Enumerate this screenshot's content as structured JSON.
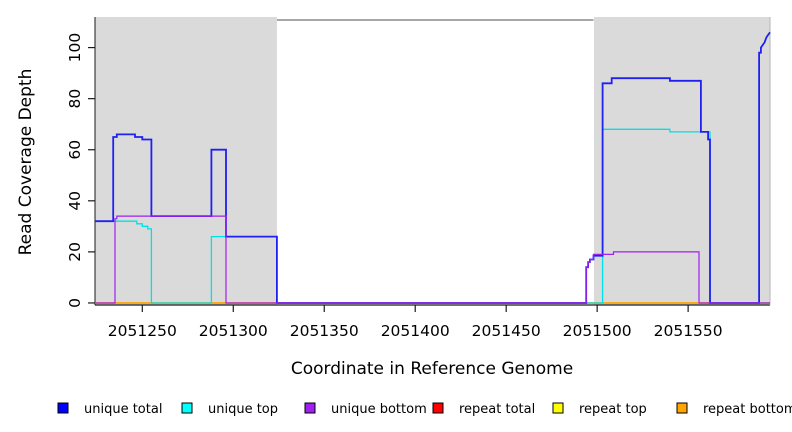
{
  "chart_data": {
    "type": "line",
    "subtype": "step-coverage-plot",
    "title": "",
    "xlabel": "Coordinate in Reference Genome",
    "ylabel": "Read Coverage Depth",
    "xlim": [
      2051224,
      2051595
    ],
    "ylim": [
      -0.8,
      110.8
    ],
    "xticks": [
      2051250,
      2051300,
      2051350,
      2051400,
      2051450,
      2051500,
      2051550
    ],
    "yticks": [
      0,
      20,
      40,
      60,
      80,
      100
    ],
    "grid": "off",
    "legend_position": "bottom-row",
    "background_color": "#ffffff",
    "shaded_region_color": "#dadada",
    "shaded_regions": [
      {
        "x0": 2051224,
        "x1": 2051324
      },
      {
        "x0": 2051498,
        "x1": 2051595
      }
    ],
    "series": [
      {
        "name": "repeat total",
        "color": "#ff0000",
        "width": 1.2,
        "points": [
          [
            2051224,
            0
          ],
          [
            2051595,
            0
          ]
        ]
      },
      {
        "name": "repeat top",
        "color": "#ffff00",
        "width": 1.2,
        "points": [
          [
            2051224,
            0
          ],
          [
            2051595,
            0
          ]
        ]
      },
      {
        "name": "repeat bottom",
        "color": "#ffa500",
        "width": 1.4,
        "points": [
          [
            2051224,
            0
          ],
          [
            2051595,
            0
          ]
        ]
      },
      {
        "name": "unique top",
        "color": "#00e0e8",
        "width": 1.3,
        "points": [
          [
            2051224,
            32
          ],
          [
            2051247,
            32
          ],
          [
            2051247,
            31
          ],
          [
            2051250,
            31
          ],
          [
            2051250,
            30
          ],
          [
            2051253,
            30
          ],
          [
            2051253,
            29
          ],
          [
            2051255,
            29
          ],
          [
            2051255,
            0
          ],
          [
            2051288,
            0
          ],
          [
            2051288,
            26
          ],
          [
            2051324,
            26
          ],
          [
            2051324,
            0
          ],
          [
            2051503,
            0
          ],
          [
            2051503,
            68
          ],
          [
            2051540,
            68
          ],
          [
            2051540,
            67
          ],
          [
            2051562,
            67
          ],
          [
            2051562,
            0
          ],
          [
            2051595,
            0
          ]
        ]
      },
      {
        "name": "unique total",
        "color": "#2020f0",
        "width": 1.8,
        "points": [
          [
            2051224,
            32
          ],
          [
            2051234,
            32
          ],
          [
            2051234,
            65
          ],
          [
            2051236,
            65
          ],
          [
            2051236,
            66
          ],
          [
            2051246,
            66
          ],
          [
            2051246,
            65
          ],
          [
            2051250,
            65
          ],
          [
            2051250,
            64
          ],
          [
            2051255,
            64
          ],
          [
            2051255,
            34
          ],
          [
            2051288,
            34
          ],
          [
            2051288,
            60
          ],
          [
            2051296,
            60
          ],
          [
            2051296,
            26
          ],
          [
            2051324,
            26
          ],
          [
            2051324,
            0
          ],
          [
            2051494,
            0
          ],
          [
            2051494,
            14
          ],
          [
            2051495,
            14
          ],
          [
            2051495,
            16
          ],
          [
            2051496,
            16
          ],
          [
            2051496,
            17
          ],
          [
            2051498,
            17
          ],
          [
            2051498,
            18.5
          ],
          [
            2051503,
            18.5
          ],
          [
            2051503,
            86
          ],
          [
            2051508,
            86
          ],
          [
            2051508,
            88
          ],
          [
            2051540,
            88
          ],
          [
            2051540,
            87
          ],
          [
            2051557,
            87
          ],
          [
            2051557,
            67
          ],
          [
            2051561,
            67
          ],
          [
            2051561,
            64
          ],
          [
            2051562,
            64
          ],
          [
            2051562,
            0
          ],
          [
            2051589,
            0
          ],
          [
            2051589,
            98
          ],
          [
            2051590,
            98
          ],
          [
            2051590,
            100
          ],
          [
            2051591,
            101
          ],
          [
            2051592,
            102
          ],
          [
            2051593,
            104
          ],
          [
            2051594,
            105
          ],
          [
            2051595,
            106
          ]
        ]
      },
      {
        "name": "unique bottom",
        "color": "#a020f0",
        "width": 1.2,
        "points": [
          [
            2051224,
            0
          ],
          [
            2051235,
            0
          ],
          [
            2051235,
            33
          ],
          [
            2051236,
            33
          ],
          [
            2051236,
            34
          ],
          [
            2051296,
            34
          ],
          [
            2051296,
            0
          ],
          [
            2051494,
            0
          ],
          [
            2051494,
            14
          ],
          [
            2051495,
            14
          ],
          [
            2051495,
            16
          ],
          [
            2051496,
            16
          ],
          [
            2051496,
            17
          ],
          [
            2051498,
            17
          ],
          [
            2051498,
            19
          ],
          [
            2051509,
            19
          ],
          [
            2051509,
            20
          ],
          [
            2051556,
            20
          ],
          [
            2051556,
            0
          ],
          [
            2051595,
            0
          ]
        ]
      }
    ],
    "legend": [
      {
        "label": "unique total",
        "color": "#0000ff"
      },
      {
        "label": "unique top",
        "color": "#00ffff"
      },
      {
        "label": "unique bottom",
        "color": "#a020f0"
      },
      {
        "label": "repeat total",
        "color": "#ff0000"
      },
      {
        "label": "repeat top",
        "color": "#ffff00"
      },
      {
        "label": "repeat bottom",
        "color": "#ffa500"
      }
    ]
  }
}
